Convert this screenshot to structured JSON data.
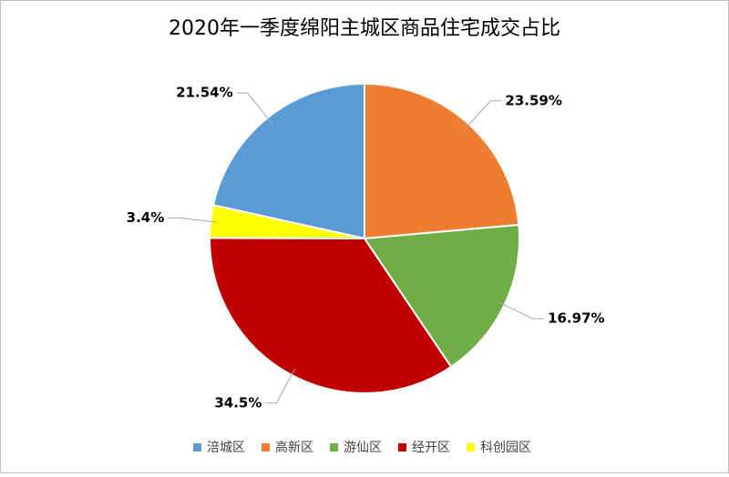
{
  "chart_data": {
    "type": "pie",
    "title": "2020年一季度绵阳主城区商品住宅成交占比",
    "categories": [
      "涪城区",
      "高新区",
      "游仙区",
      "经开区",
      "科创园区"
    ],
    "values": [
      21.54,
      23.59,
      16.97,
      34.5,
      3.4
    ],
    "value_labels": [
      "21.54%",
      "23.59%",
      "16.97%",
      "34.5%",
      "3.4%"
    ],
    "colors": [
      "#5b9bd5",
      "#ed7d31",
      "#70ad47",
      "#c00000",
      "#ffff00"
    ],
    "legend": "bottom"
  }
}
